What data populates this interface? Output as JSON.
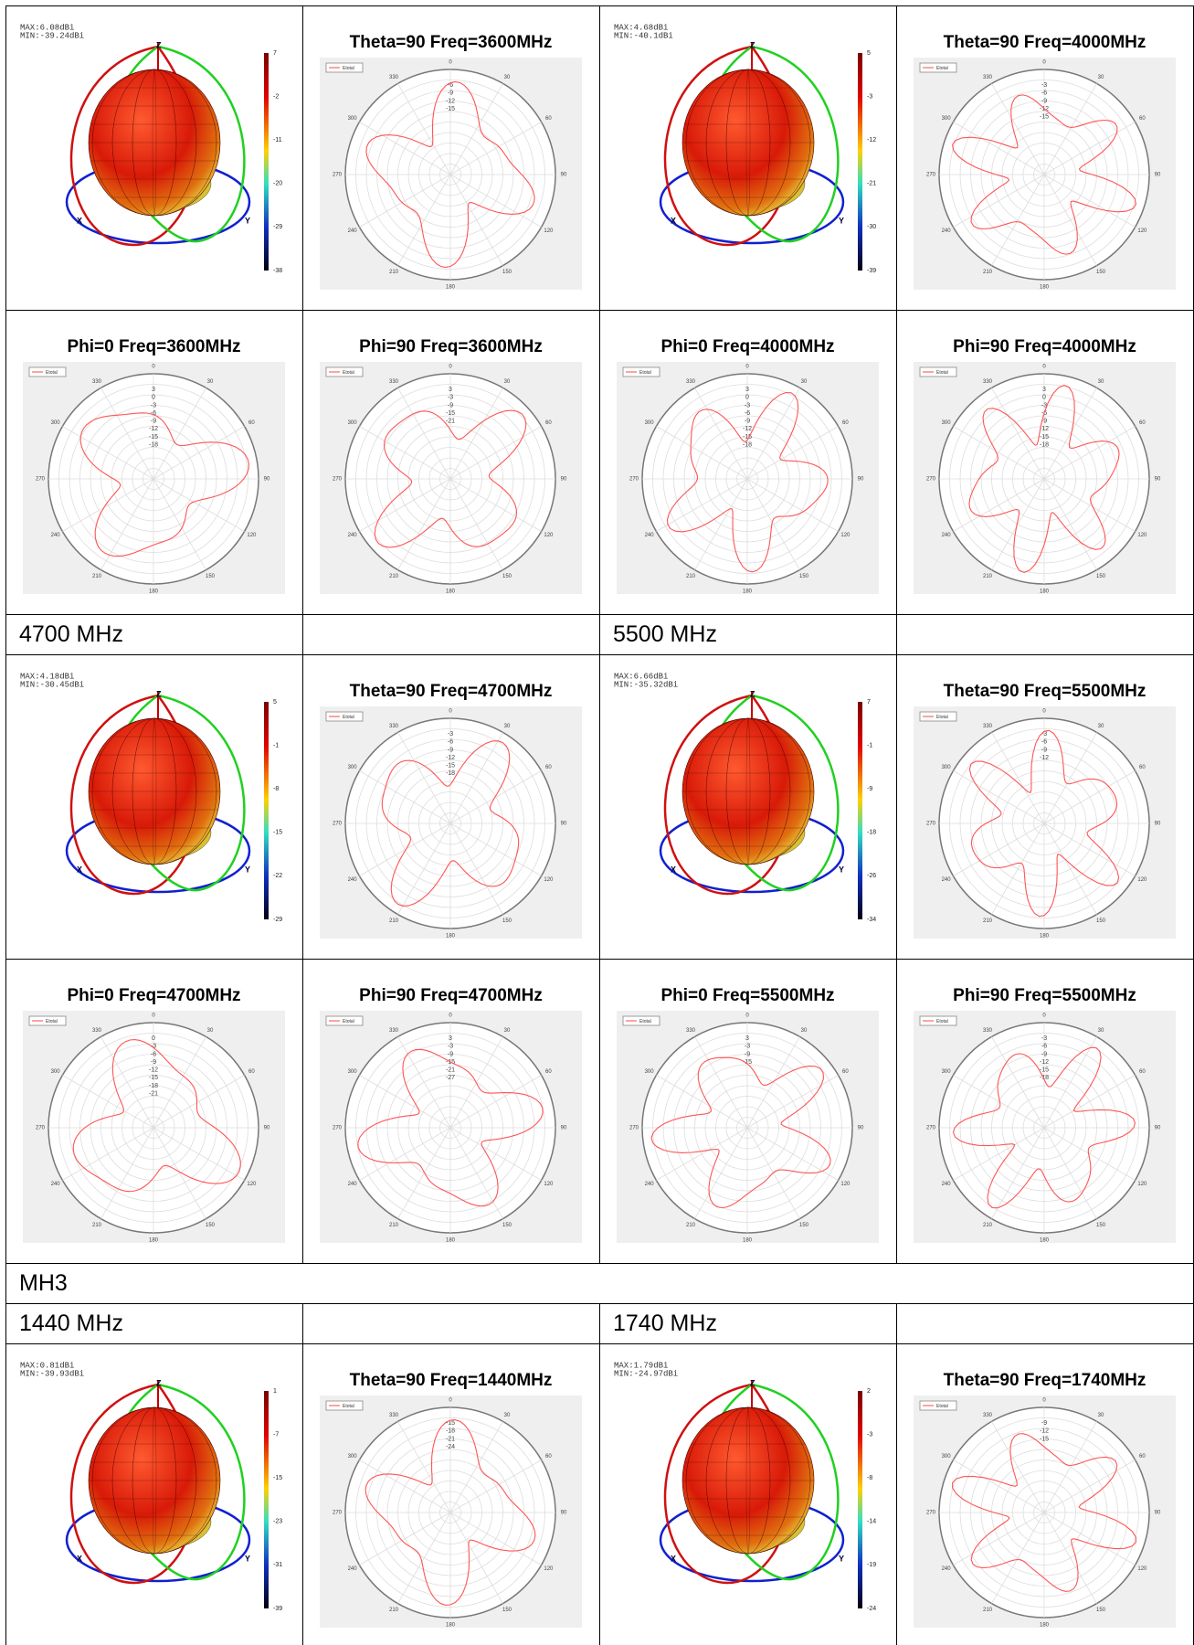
{
  "legend": "Etotal",
  "angles": [
    "0",
    "30",
    "60",
    "90",
    "120",
    "150",
    "180",
    "210",
    "240",
    "270",
    "300",
    "330"
  ],
  "axes_3d": [
    "Z",
    "X",
    "Y"
  ],
  "rows": [
    {
      "cells": [
        {
          "type": "3d",
          "max": "MAX:6.08dBi",
          "min": "MIN:-39.24dBi",
          "colorbar": [
            "7",
            "-2",
            "-11",
            "-20",
            "-29",
            "-38"
          ]
        },
        {
          "type": "polar",
          "title": "Theta=90 Freq=3600MHz",
          "radial": [
            "-6",
            "-9",
            "-12",
            "-15"
          ]
        },
        {
          "type": "3d",
          "max": "MAX:4.68dBi",
          "min": "MIN:-40.1dBi",
          "colorbar": [
            "5",
            "-3",
            "-12",
            "-21",
            "-30",
            "-39"
          ]
        },
        {
          "type": "polar",
          "title": "Theta=90 Freq=4000MHz",
          "radial": [
            "-3",
            "-6",
            "-9",
            "-12",
            "-15"
          ]
        }
      ]
    },
    {
      "cells": [
        {
          "type": "polar",
          "title": "Phi=0 Freq=3600MHz",
          "radial": [
            "3",
            "0",
            "-3",
            "-6",
            "-9",
            "-12",
            "-15",
            "-18"
          ]
        },
        {
          "type": "polar",
          "title": "Phi=90 Freq=3600MHz",
          "radial": [
            "3",
            "-3",
            "-9",
            "-15",
            "-21"
          ]
        },
        {
          "type": "polar",
          "title": "Phi=0 Freq=4000MHz",
          "radial": [
            "3",
            "0",
            "-3",
            "-6",
            "-9",
            "-12",
            "-15",
            "-18"
          ]
        },
        {
          "type": "polar",
          "title": "Phi=90 Freq=4000MHz",
          "radial": [
            "3",
            "0",
            "-3",
            "-6",
            "-9",
            "-12",
            "-15",
            "-18"
          ]
        }
      ]
    },
    {
      "labels": [
        "4700 MHz",
        "5500 MHz"
      ]
    },
    {
      "cells": [
        {
          "type": "3d",
          "max": "MAX:4.18dBi",
          "min": "MIN:-30.45dBi",
          "colorbar": [
            "5",
            "-1",
            "-8",
            "-15",
            "-22",
            "-29"
          ]
        },
        {
          "type": "polar",
          "title": "Theta=90 Freq=4700MHz",
          "radial": [
            "-3",
            "-6",
            "-9",
            "-12",
            "-15",
            "-18"
          ]
        },
        {
          "type": "3d",
          "max": "MAX:6.66dBi",
          "min": "MIN:-35.32dBi",
          "colorbar": [
            "7",
            "-1",
            "-9",
            "-18",
            "-26",
            "-34"
          ]
        },
        {
          "type": "polar",
          "title": "Theta=90 Freq=5500MHz",
          "radial": [
            "-3",
            "-6",
            "-9",
            "-12"
          ]
        }
      ]
    },
    {
      "cells": [
        {
          "type": "polar",
          "title": "Phi=0 Freq=4700MHz",
          "radial": [
            "0",
            "-3",
            "-6",
            "-9",
            "-12",
            "-15",
            "-18",
            "-21"
          ]
        },
        {
          "type": "polar",
          "title": "Phi=90 Freq=4700MHz",
          "radial": [
            "3",
            "-3",
            "-9",
            "-15",
            "-21",
            "-27"
          ]
        },
        {
          "type": "polar",
          "title": "Phi=0 Freq=5500MHz",
          "radial": [
            "3",
            "-3",
            "-9",
            "-15"
          ]
        },
        {
          "type": "polar",
          "title": "Phi=90 Freq=5500MHz",
          "radial": [
            "-3",
            "-6",
            "-9",
            "-12",
            "-15",
            "-18"
          ]
        }
      ]
    },
    {
      "heading": "MH3"
    },
    {
      "labels": [
        "1440 MHz",
        "1740 MHz"
      ]
    },
    {
      "cells": [
        {
          "type": "3d",
          "max": "MAX:0.81dBi",
          "min": "MIN:-39.93dBi",
          "colorbar": [
            "1",
            "-7",
            "-15",
            "-23",
            "-31",
            "-39"
          ]
        },
        {
          "type": "polar",
          "title": "Theta=90 Freq=1440MHz",
          "radial": [
            "-15",
            "-18",
            "-21",
            "-24"
          ]
        },
        {
          "type": "3d",
          "max": "MAX:1.79dBi",
          "min": "MIN:-24.97dBi",
          "colorbar": [
            "2",
            "-3",
            "-8",
            "-14",
            "-19",
            "-24"
          ]
        },
        {
          "type": "polar",
          "title": "Theta=90 Freq=1740MHz",
          "radial": [
            "-9",
            "-12",
            "-15"
          ]
        }
      ]
    }
  ]
}
